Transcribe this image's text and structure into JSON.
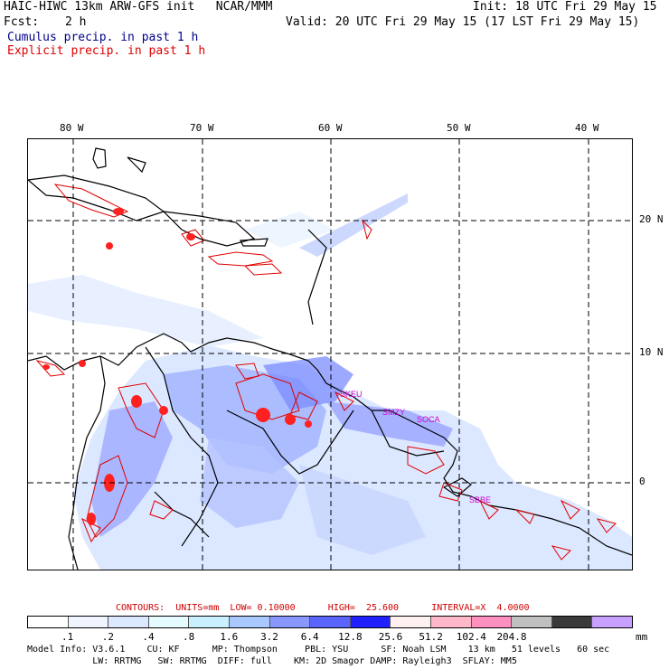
{
  "header": {
    "model_title": "HAIC-HIWC 13km ARW-GFS init   NCAR/MMM",
    "init_time": "Init: 18 UTC Fri 29 May 15",
    "fcst_label": "Fcst:",
    "fcst_value": "2 h",
    "valid_time": "Valid: 20 UTC Fri 29 May 15 (17 LST Fri 29 May 15)",
    "legend_cumulus": "Cumulus precip. in past 1 h",
    "legend_explicit": "Explicit precip. in past 1 h"
  },
  "map": {
    "lon_labels": [
      "80 W",
      "70 W",
      "60 W",
      "50 W",
      "40 W"
    ],
    "lat_labels": [
      "20 N",
      "10 N",
      "0"
    ],
    "station_labels": [
      "SKEU",
      "SMZY",
      "SOCA",
      "SBBE"
    ],
    "colors": {
      "coast": "#000000",
      "cumulus": "#5a6bff",
      "explicit": "#e00000",
      "station": "#cc00cc",
      "grid": "#000000"
    }
  },
  "contour_info": {
    "text": "CONTOURS:  UNITS=mm  LOW= 0.10000      HIGH=  25.600      INTERVAL=X  4.0000"
  },
  "colorbar": {
    "colors": [
      "#ffffff",
      "#f0f4ff",
      "#dce8ff",
      "#e6fbff",
      "#c8f0ff",
      "#a8c8ff",
      "#8898ff",
      "#5a64ff",
      "#2020ff",
      "#fff0f0",
      "#ffb8c8",
      "#ff90c0",
      "#c0c0c0",
      "#3a3a3a",
      "#c8a0ff"
    ],
    "labels": [
      ".1",
      ".2",
      ".4",
      ".8",
      "1.6",
      "3.2",
      "6.4",
      "12.8",
      "25.6",
      "51.2",
      "102.4",
      "204.8"
    ],
    "units": "mm"
  },
  "model_info": {
    "line1": "Model Info: V3.6.1    CU: KF      MP: Thompson     PBL: YSU      SF: Noah LSM    13 km   51 levels   60 sec",
    "line2": "            LW: RRTMG   SW: RRTMG  DIFF: full    KM: 2D Smagor DAMP: Rayleigh3  SFLAY: MM5"
  }
}
